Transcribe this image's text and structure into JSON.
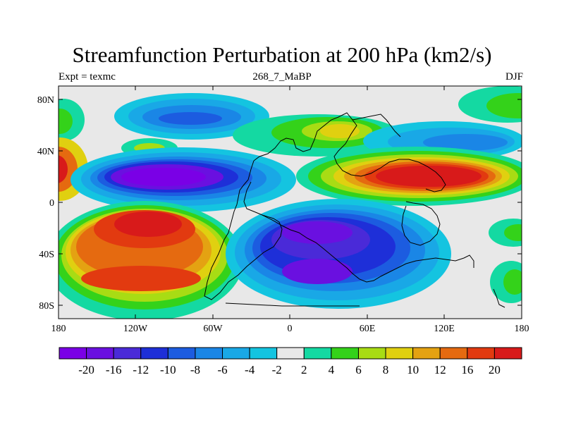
{
  "title": "Streamfunction Perturbation at 200 hPa (km2/s)",
  "left_label": "Expt = texmc",
  "center_label": "268_7_MaBP",
  "right_label": "DJF",
  "lat_ticks": [
    "80N",
    "40N",
    "0",
    "40S",
    "80S"
  ],
  "lon_ticks": [
    "180",
    "120W",
    "60W",
    "0",
    "60E",
    "120E",
    "180"
  ],
  "colorbar": {
    "labels": [
      "-20",
      "-16",
      "-12",
      "-10",
      "-8",
      "-6",
      "-4",
      "-2",
      "2",
      "4",
      "6",
      "8",
      "10",
      "12",
      "16",
      "20"
    ],
    "colors": [
      "#7a00e6",
      "#6a10e0",
      "#4a2ad8",
      "#1e2fd8",
      "#1c5ce0",
      "#1a86e6",
      "#19a8e6",
      "#14c4e0",
      "#e8e8e8",
      "#14d9a2",
      "#34d21a",
      "#a8dc14",
      "#e0d010",
      "#e4a212",
      "#e56a10",
      "#e23a10",
      "#d81a1a"
    ]
  }
}
